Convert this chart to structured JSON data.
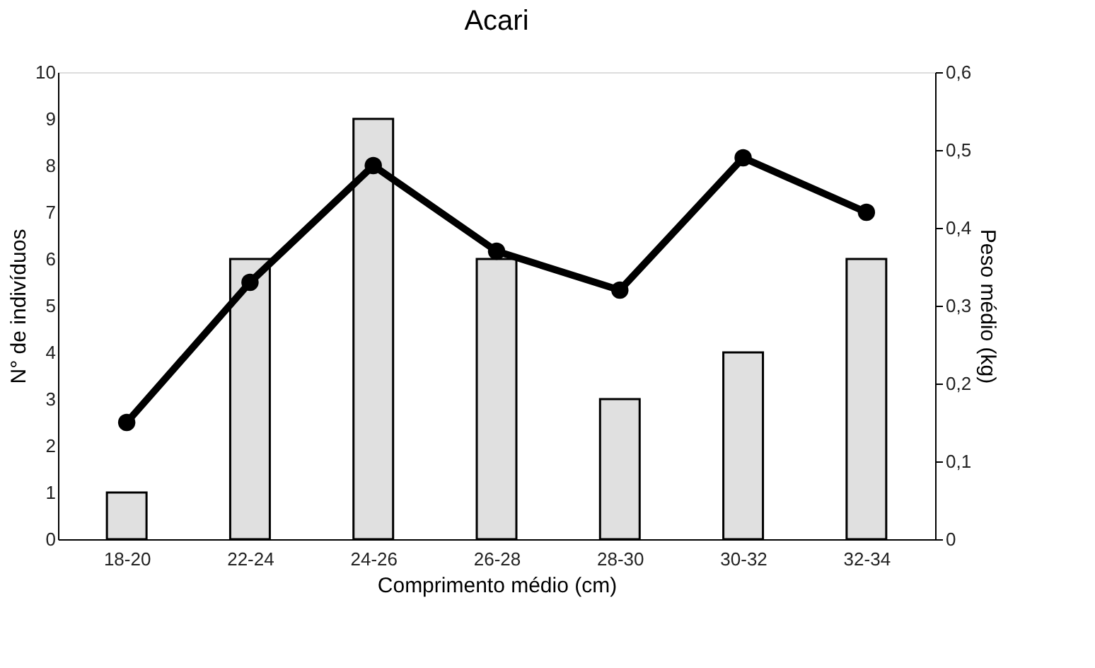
{
  "chart_data": {
    "type": "bar",
    "title": "Acari",
    "xlabel": "Comprimento médio (cm)",
    "ylabel": "N° de indivíduos",
    "y2label": "Peso médio (kg)",
    "categories": [
      "18-20",
      "22-24",
      "24-26",
      "26-28",
      "28-30",
      "30-32",
      "32-34"
    ],
    "series": [
      {
        "color": "#e0e0e0",
        "values": [
          1,
          6,
          9,
          6,
          3,
          4,
          6
        ]
      },
      {
        "type": "line",
        "axis": "y2",
        "color": "#000000",
        "marker": "circle",
        "line_style": "solid",
        "values": [
          0.15,
          0.33,
          0.48,
          0.37,
          0.32,
          0.49,
          0.42
        ]
      }
    ],
    "ylim": [
      0,
      10
    ],
    "yticks": [
      0,
      1,
      2,
      3,
      4,
      5,
      6,
      7,
      8,
      9,
      10
    ],
    "y2lim": [
      0,
      0.6
    ],
    "y2ticks": [
      0,
      {
        "value": 0.1,
        "label": "0,1"
      },
      {
        "value": 0.2,
        "label": "0,2"
      },
      {
        "value": 0.3,
        "label": "0,3"
      },
      {
        "value": 0.4,
        "label": "0,4"
      },
      {
        "value": 0.5,
        "label": "0,5"
      },
      {
        "value": 0.6,
        "label": "0,6"
      }
    ],
    "grid": false,
    "legend": false
  }
}
